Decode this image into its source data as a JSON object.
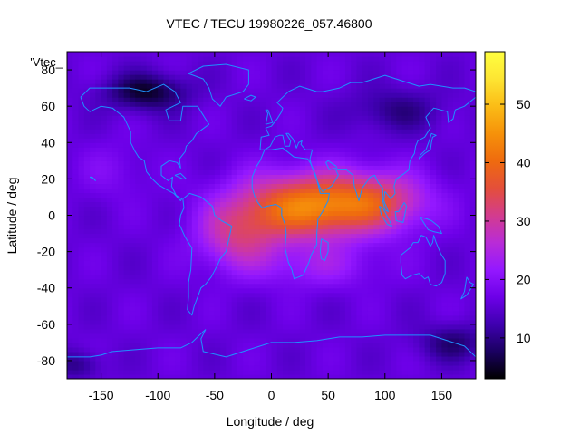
{
  "chart_data": {
    "type": "heatmap",
    "title": "VTEC / TECU 19980226_057.46800",
    "xlabel": "Longitude / deg",
    "ylabel": "Latitude / deg",
    "key_label": "'Vtec_",
    "xlim": [
      -180,
      180
    ],
    "ylim": [
      -90,
      90
    ],
    "x_ticks": [
      -150,
      -100,
      -50,
      0,
      50,
      100,
      150
    ],
    "y_ticks": [
      -80,
      -60,
      -40,
      -20,
      0,
      20,
      40,
      60,
      80
    ],
    "colorbar": {
      "range": [
        3,
        59
      ],
      "ticks": [
        10,
        20,
        30,
        40,
        50
      ]
    },
    "colormap": [
      "#000000",
      "#1a0060",
      "#3f00b0",
      "#6d00e8",
      "#9418ff",
      "#b92cd6",
      "#d33c8e",
      "#e44f3a",
      "#ef6b0e",
      "#f6920a",
      "#fbbc16",
      "#fde533",
      "#ffff3f"
    ],
    "coastline_color": "#1e90ff",
    "model": {
      "background": 16,
      "blobs": [
        {
          "lon": 30,
          "lat": 5,
          "slon": 60,
          "slat": 18,
          "amp": 26
        },
        {
          "lon": 95,
          "lat": 8,
          "slon": 45,
          "slat": 16,
          "amp": 14
        },
        {
          "lon": -30,
          "lat": -12,
          "slon": 35,
          "slat": 18,
          "amp": 12
        },
        {
          "lon": 40,
          "lat": -28,
          "slon": 55,
          "slat": 12,
          "amp": 6
        },
        {
          "lon": -140,
          "lat": 25,
          "slon": 30,
          "slat": 15,
          "amp": 3
        }
      ],
      "lows": [
        {
          "lon": -110,
          "lat": 68,
          "slon": 35,
          "slat": 10,
          "amp": -11
        },
        {
          "lon": 110,
          "lat": 58,
          "slon": 40,
          "slat": 12,
          "amp": -6
        },
        {
          "lon": 160,
          "lat": -70,
          "slon": 30,
          "slat": 10,
          "amp": -7
        },
        {
          "lon": -170,
          "lat": -82,
          "slon": 20,
          "slat": 8,
          "amp": -6
        }
      ]
    }
  }
}
